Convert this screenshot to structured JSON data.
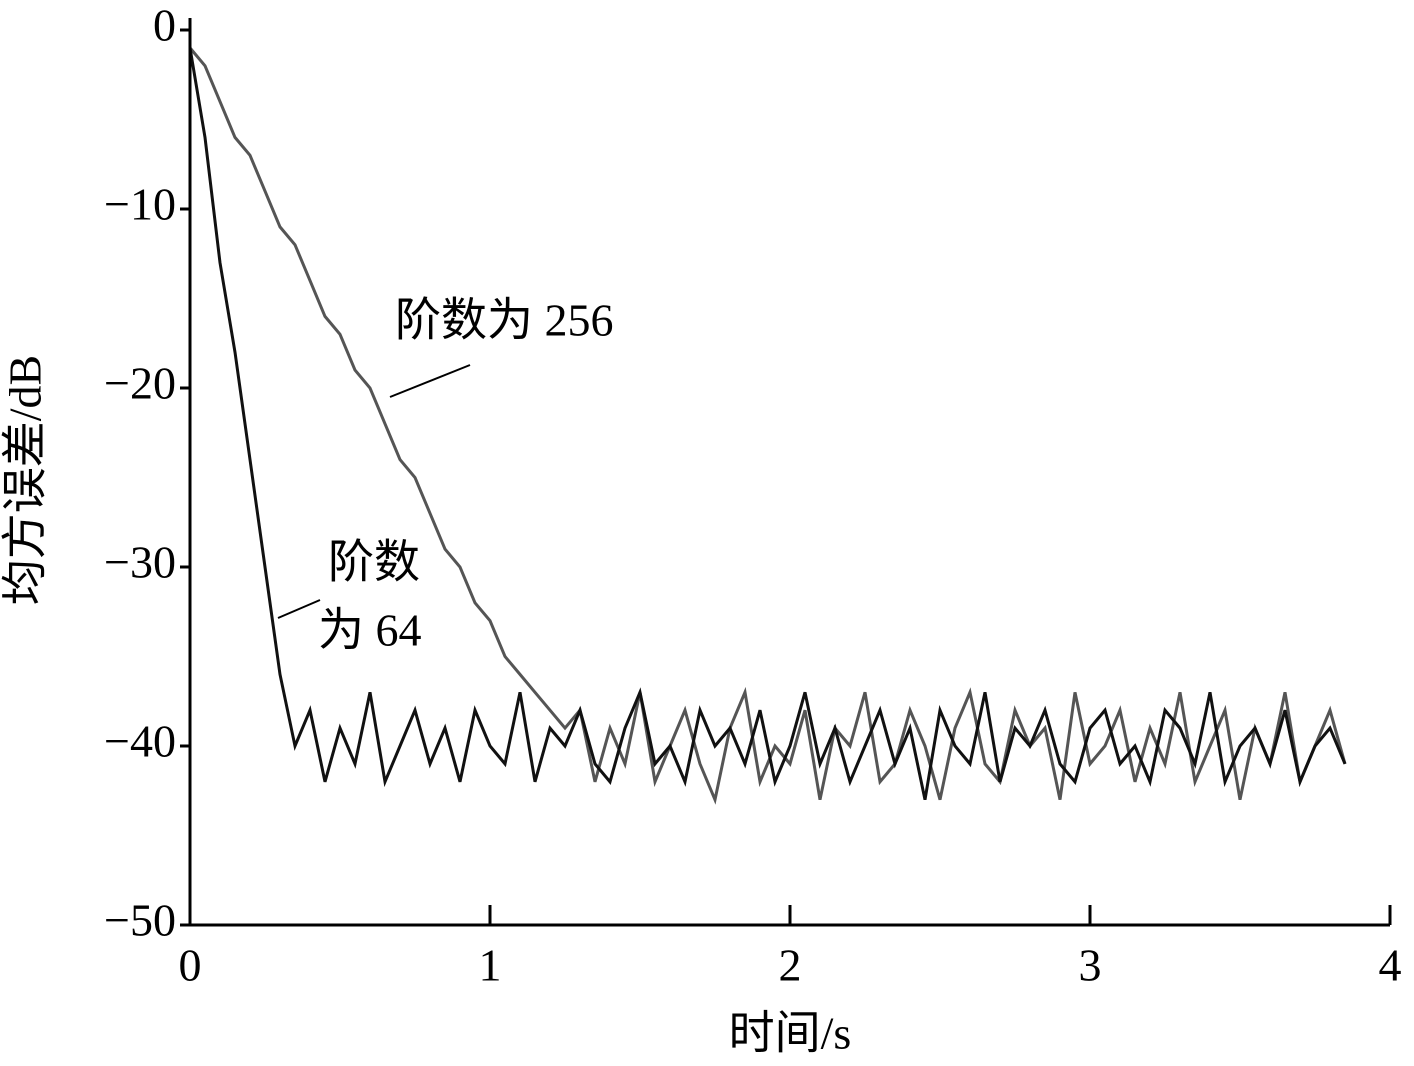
{
  "chart_data": {
    "type": "line",
    "xlabel": "时间/s",
    "ylabel": "均方误差/dB",
    "xlim": [
      0,
      4
    ],
    "xticks": [
      0,
      1,
      2,
      3,
      4
    ],
    "ylim": [
      -50,
      0
    ],
    "yticks": [
      {
        "value": -50,
        "label": "−50"
      },
      {
        "value": -40,
        "label": "−40"
      },
      {
        "value": -30,
        "label": "−30"
      },
      {
        "value": -20,
        "label": "−20"
      },
      {
        "value": -10,
        "label": "−10"
      },
      0
    ],
    "x": [
      0,
      0.05,
      0.1,
      0.15,
      0.2,
      0.25,
      0.3,
      0.35,
      0.4,
      0.45,
      0.5,
      0.55,
      0.6,
      0.65,
      0.7,
      0.75,
      0.8,
      0.85,
      0.9,
      0.95,
      1,
      1.05,
      1.1,
      1.15,
      1.2,
      1.25,
      1.3,
      1.35,
      1.4,
      1.45,
      1.5,
      1.55,
      1.6,
      1.65,
      1.7,
      1.75,
      1.8,
      1.85,
      1.9,
      1.95,
      2,
      2.05,
      2.1,
      2.15,
      2.2,
      2.25,
      2.3,
      2.35,
      2.4,
      2.45,
      2.5,
      2.55,
      2.6,
      2.65,
      2.7,
      2.75,
      2.8,
      2.85,
      2.9,
      2.95,
      3,
      3.05,
      3.1,
      3.15,
      3.2,
      3.25,
      3.3,
      3.35,
      3.4,
      3.45,
      3.5,
      3.55,
      3.6,
      3.65,
      3.7,
      3.75,
      3.8,
      3.85
    ],
    "series": [
      {
        "color": "#555555",
        "values": [
          -1,
          -2,
          -4,
          -6,
          -7,
          -9,
          -11,
          -12,
          -14,
          -16,
          -17,
          -19,
          -20,
          -22,
          -24,
          -25,
          -27,
          -29,
          -30,
          -32,
          -33,
          -35,
          -36,
          -37,
          -38,
          -39,
          -38,
          -42,
          -39,
          -41,
          -37,
          -42,
          -40,
          -38,
          -41,
          -43,
          -39,
          -37,
          -42,
          -40,
          -41,
          -38,
          -43,
          -39,
          -40,
          -37,
          -42,
          -41,
          -38,
          -40,
          -43,
          -39,
          -37,
          -41,
          -42,
          -38,
          -40,
          -39,
          -43,
          -37,
          -41,
          -40,
          -38,
          -42,
          -39,
          -41,
          -37,
          -42,
          -40,
          -38,
          -43,
          -39,
          -41,
          -37,
          -42,
          -40,
          -38,
          -41
        ]
      },
      {
        "color": "#111111",
        "values": [
          -1,
          -6,
          -13,
          -18,
          -24,
          -30,
          -36,
          -40,
          -38,
          -42,
          -39,
          -41,
          -37,
          -42,
          -40,
          -38,
          -41,
          -39,
          -42,
          -38,
          -40,
          -41,
          -37,
          -42,
          -39,
          -40,
          -38,
          -41,
          -42,
          -39,
          -37,
          -41,
          -40,
          -42,
          -38,
          -40,
          -39,
          -41,
          -38,
          -42,
          -40,
          -37,
          -41,
          -39,
          -42,
          -40,
          -38,
          -41,
          -39,
          -43,
          -38,
          -40,
          -41,
          -37,
          -42,
          -39,
          -40,
          -38,
          -41,
          -42,
          -39,
          -38,
          -41,
          -40,
          -42,
          -38,
          -39,
          -41,
          -37,
          -42,
          -40,
          -39,
          -41,
          -38,
          -42,
          -40,
          -39,
          -41
        ]
      }
    ],
    "annotations": [
      "阶数为 256",
      "阶数",
      "为 64"
    ]
  }
}
